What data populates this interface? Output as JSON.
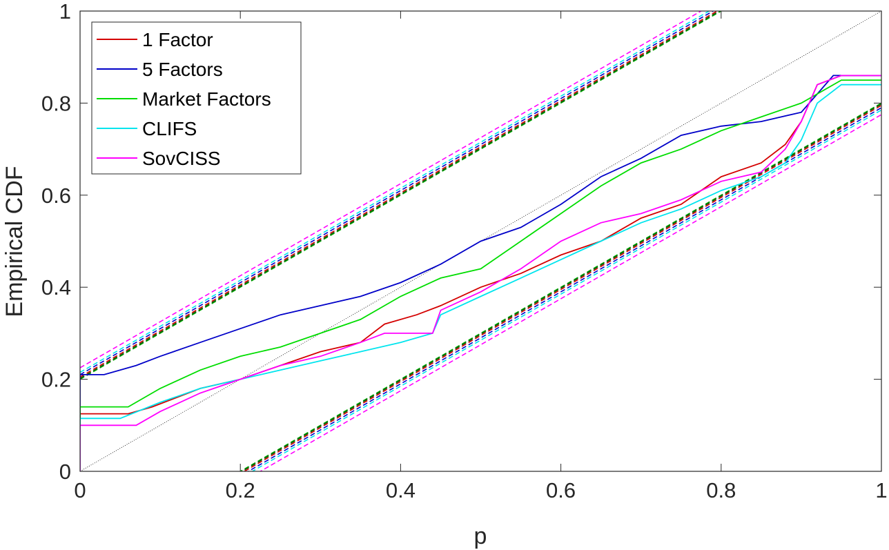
{
  "chart_data": {
    "type": "line",
    "title": "",
    "xlabel": "p",
    "ylabel": "Empirical CDF",
    "xlim": [
      0,
      1
    ],
    "ylim": [
      0,
      1
    ],
    "xticks": [
      "0",
      "0.2",
      "0.4",
      "0.6",
      "0.8",
      "1"
    ],
    "yticks": [
      "0",
      "0.2",
      "0.4",
      "0.6",
      "0.8",
      "1"
    ],
    "grid": false,
    "legend_position": "top-left",
    "reference_line": {
      "name": "45-degree line",
      "x": [
        0,
        1
      ],
      "y": [
        0,
        1
      ],
      "color": "#000000",
      "style": "dotted"
    },
    "series": [
      {
        "name": "1 Factor",
        "color": "#d40000",
        "x": [
          0,
          0,
          0.06,
          0.09,
          0.12,
          0.15,
          0.2,
          0.25,
          0.3,
          0.35,
          0.38,
          0.42,
          0.45,
          0.5,
          0.55,
          0.6,
          0.65,
          0.7,
          0.75,
          0.8,
          0.85,
          0.88,
          0.9,
          0.92,
          0.95,
          1
        ],
        "y": [
          0,
          0.125,
          0.125,
          0.14,
          0.16,
          0.18,
          0.2,
          0.23,
          0.26,
          0.28,
          0.32,
          0.34,
          0.36,
          0.4,
          0.43,
          0.47,
          0.5,
          0.55,
          0.58,
          0.64,
          0.67,
          0.71,
          0.76,
          0.84,
          0.86,
          0.86
        ]
      },
      {
        "name": "5 Factors",
        "color": "#0000c8",
        "x": [
          0,
          0,
          0.03,
          0.07,
          0.1,
          0.15,
          0.2,
          0.25,
          0.3,
          0.35,
          0.4,
          0.45,
          0.5,
          0.55,
          0.6,
          0.65,
          0.7,
          0.75,
          0.8,
          0.85,
          0.9,
          0.92,
          0.94,
          1
        ],
        "y": [
          0,
          0.21,
          0.21,
          0.23,
          0.25,
          0.28,
          0.31,
          0.34,
          0.36,
          0.38,
          0.41,
          0.45,
          0.5,
          0.53,
          0.58,
          0.64,
          0.68,
          0.73,
          0.75,
          0.76,
          0.78,
          0.82,
          0.86,
          0.86
        ]
      },
      {
        "name": "Market Factors",
        "color": "#00dd00",
        "x": [
          0,
          0,
          0.06,
          0.1,
          0.15,
          0.2,
          0.25,
          0.3,
          0.35,
          0.4,
          0.45,
          0.5,
          0.55,
          0.6,
          0.65,
          0.7,
          0.75,
          0.8,
          0.85,
          0.9,
          0.92,
          0.95,
          1
        ],
        "y": [
          0,
          0.14,
          0.14,
          0.18,
          0.22,
          0.25,
          0.27,
          0.3,
          0.33,
          0.38,
          0.42,
          0.44,
          0.5,
          0.56,
          0.62,
          0.67,
          0.7,
          0.74,
          0.77,
          0.8,
          0.82,
          0.85,
          0.85
        ]
      },
      {
        "name": "CLIFS",
        "color": "#00e5ee",
        "x": [
          0,
          0,
          0.05,
          0.1,
          0.15,
          0.2,
          0.25,
          0.3,
          0.35,
          0.4,
          0.44,
          0.45,
          0.5,
          0.55,
          0.6,
          0.65,
          0.7,
          0.75,
          0.8,
          0.85,
          0.88,
          0.9,
          0.92,
          0.95,
          1
        ],
        "y": [
          0,
          0.115,
          0.115,
          0.15,
          0.18,
          0.2,
          0.22,
          0.24,
          0.26,
          0.28,
          0.3,
          0.34,
          0.38,
          0.42,
          0.46,
          0.5,
          0.54,
          0.57,
          0.61,
          0.64,
          0.67,
          0.72,
          0.8,
          0.84,
          0.84
        ]
      },
      {
        "name": "SovCISS",
        "color": "#ff00ff",
        "x": [
          0,
          0,
          0.07,
          0.1,
          0.15,
          0.2,
          0.25,
          0.3,
          0.35,
          0.38,
          0.44,
          0.45,
          0.5,
          0.55,
          0.6,
          0.65,
          0.7,
          0.75,
          0.8,
          0.85,
          0.88,
          0.9,
          0.92,
          0.95,
          1
        ],
        "y": [
          0,
          0.1,
          0.1,
          0.13,
          0.17,
          0.2,
          0.23,
          0.25,
          0.28,
          0.3,
          0.3,
          0.35,
          0.39,
          0.44,
          0.5,
          0.54,
          0.56,
          0.59,
          0.63,
          0.65,
          0.7,
          0.76,
          0.84,
          0.86,
          0.86
        ]
      }
    ],
    "confidence_bands": [
      {
        "series": "1 Factor",
        "color": "#d40000",
        "offset": 0.205
      },
      {
        "series": "5 Factors",
        "color": "#0000c8",
        "offset": 0.21
      },
      {
        "series": "Market Factors",
        "color": "#00aa00",
        "offset": 0.2
      },
      {
        "series": "CLIFS",
        "color": "#00e5ee",
        "offset": 0.215
      },
      {
        "series": "SovCISS",
        "color": "#ff00ff",
        "offset": 0.225
      },
      {
        "series": "Market Factors",
        "color": "#005500",
        "offset": 0.202
      }
    ]
  }
}
